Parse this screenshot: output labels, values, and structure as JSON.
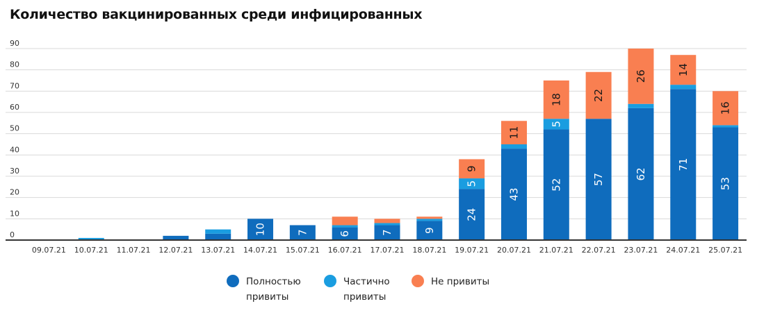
{
  "chart_data": {
    "type": "bar",
    "stacked": true,
    "title": "Количество вакцинированных среди инфицированных",
    "categories": [
      "09.07.21",
      "10.07.21",
      "11.07.21",
      "12.07.21",
      "13.07.21",
      "14.07.21",
      "15.07.21",
      "16.07.21",
      "17.07.21",
      "18.07.21",
      "19.07.21",
      "20.07.21",
      "21.07.21",
      "22.07.21",
      "23.07.21",
      "24.07.21",
      "25.07.21"
    ],
    "series": [
      {
        "name": "Полностью привиты",
        "color": "#0f6cbd",
        "values": [
          0,
          0,
          0,
          2,
          3,
          10,
          7,
          6,
          7,
          9,
          24,
          43,
          52,
          57,
          62,
          71,
          53
        ],
        "labels": [
          "",
          "",
          "",
          "",
          "",
          "10",
          "7",
          "6",
          "7",
          "9",
          "24",
          "43",
          "52",
          "57",
          "62",
          "71",
          "53"
        ]
      },
      {
        "name": "Частично привиты",
        "color": "#1a9de0",
        "values": [
          0,
          1,
          0,
          0,
          2,
          0,
          0,
          1,
          1,
          1,
          5,
          2,
          5,
          0,
          2,
          2,
          1
        ],
        "labels": [
          "",
          "",
          "",
          "",
          "",
          "",
          "",
          "",
          "",
          "",
          "5",
          "",
          "5",
          "",
          "",
          "",
          ""
        ]
      },
      {
        "name": "Не привиты",
        "color": "#f97f51",
        "values": [
          0,
          0,
          0,
          0,
          0,
          0,
          0,
          4,
          2,
          1,
          9,
          11,
          18,
          22,
          26,
          14,
          16
        ],
        "labels": [
          "",
          "",
          "",
          "",
          "",
          "",
          "",
          "",
          "",
          "",
          "9",
          "11",
          "18",
          "22",
          "26",
          "14",
          "16"
        ]
      }
    ],
    "yticks": [
      "0",
      "10",
      "20",
      "30",
      "40",
      "50",
      "60",
      "70",
      "80",
      "90"
    ],
    "ylim": [
      0,
      90
    ],
    "grid": true,
    "legend_position": "bottom-center",
    "xlabel": "",
    "ylabel": ""
  },
  "legend": {
    "full": {
      "line1": "Полностью",
      "line2": "привиты"
    },
    "partial": {
      "line1": "Частично",
      "line2": "привиты"
    },
    "none": {
      "line1": "Не привиты",
      "line2": ""
    }
  }
}
